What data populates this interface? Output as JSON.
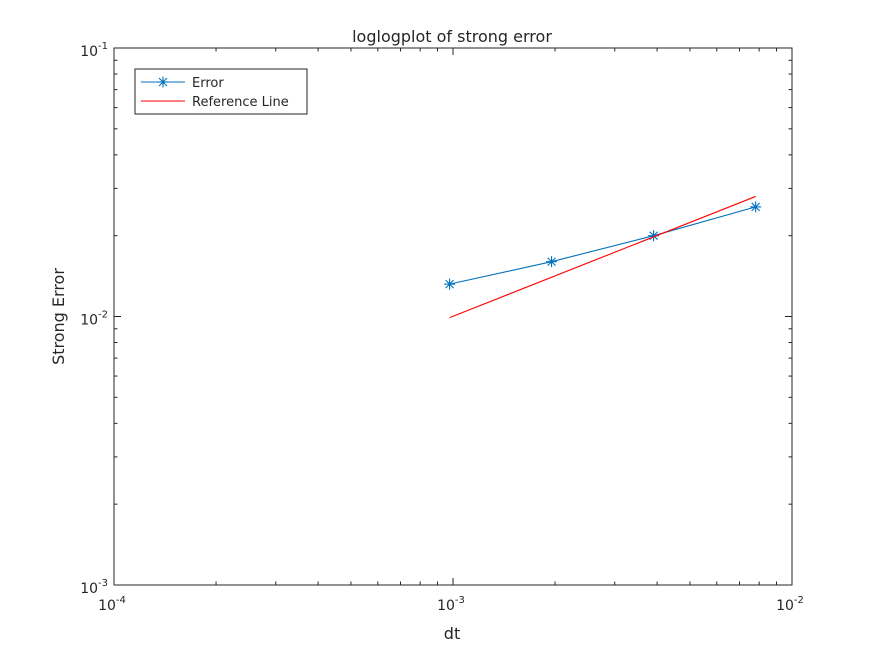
{
  "chart_data": {
    "type": "line",
    "title": "loglogplot of strong error",
    "xlabel": "dt",
    "ylabel": "Strong Error",
    "xscale": "log",
    "yscale": "log",
    "xlim": [
      0.0001,
      0.01
    ],
    "ylim": [
      0.001,
      0.1
    ],
    "grid": false,
    "legend": {
      "position": "top-left"
    },
    "x_ticks": [
      {
        "base": "10",
        "exp": "-4",
        "value": 0.0001
      },
      {
        "base": "10",
        "exp": "-3",
        "value": 0.001
      },
      {
        "base": "10",
        "exp": "-2",
        "value": 0.01
      }
    ],
    "y_ticks": [
      {
        "base": "10",
        "exp": "-3",
        "value": 0.001
      },
      {
        "base": "10",
        "exp": "-2",
        "value": 0.01
      },
      {
        "base": "10",
        "exp": "-1",
        "value": 0.1
      }
    ],
    "series": [
      {
        "name": "Error",
        "color": "#0072BD",
        "marker": "asterisk",
        "x": [
          0.000977,
          0.001953,
          0.003906,
          0.007813
        ],
        "y": [
          0.0132,
          0.016,
          0.02,
          0.0256
        ]
      },
      {
        "name": "Reference Line",
        "color": "#FF0000",
        "marker": "none",
        "x": [
          0.000977,
          0.007813
        ],
        "y": [
          0.0099,
          0.028
        ]
      }
    ]
  }
}
